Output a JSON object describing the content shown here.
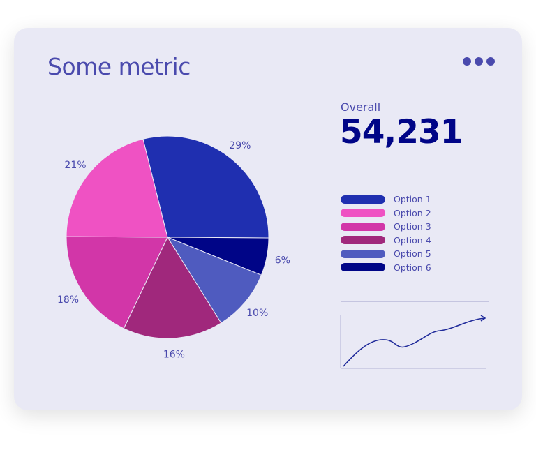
{
  "header": {
    "title": "Some metric",
    "menu_icon": "more-horizontal-icon"
  },
  "summary": {
    "label": "Overall",
    "value": "54,231"
  },
  "colors": {
    "text": "#4a4aad",
    "value": "#000587",
    "card": "#e9e9f5"
  },
  "chart_data": {
    "type": "pie",
    "categories": [
      "Option 1",
      "Option 6",
      "Option 5",
      "Option 4",
      "Option 3",
      "Option 2"
    ],
    "values": [
      29,
      6,
      10,
      16,
      18,
      21
    ],
    "labels": [
      "29%",
      "6%",
      "10%",
      "16%",
      "18%",
      "21%"
    ],
    "colors": [
      "#1f2fb0",
      "#000587",
      "#4f5bbf",
      "#a0287c",
      "#d236a8",
      "#ef52c3"
    ],
    "legend": [
      {
        "label": "Option 1",
        "color": "#1f2fb0"
      },
      {
        "label": "Option 2",
        "color": "#ef52c3"
      },
      {
        "label": "Option 3",
        "color": "#d236a8"
      },
      {
        "label": "Option 4",
        "color": "#a0287c"
      },
      {
        "label": "Option 5",
        "color": "#4f5bbf"
      },
      {
        "label": "Option 6",
        "color": "#000587"
      }
    ],
    "legend_position": "right"
  },
  "sparkline": {
    "type": "line",
    "trend": "upward",
    "icon": "trend-arrow-icon"
  }
}
